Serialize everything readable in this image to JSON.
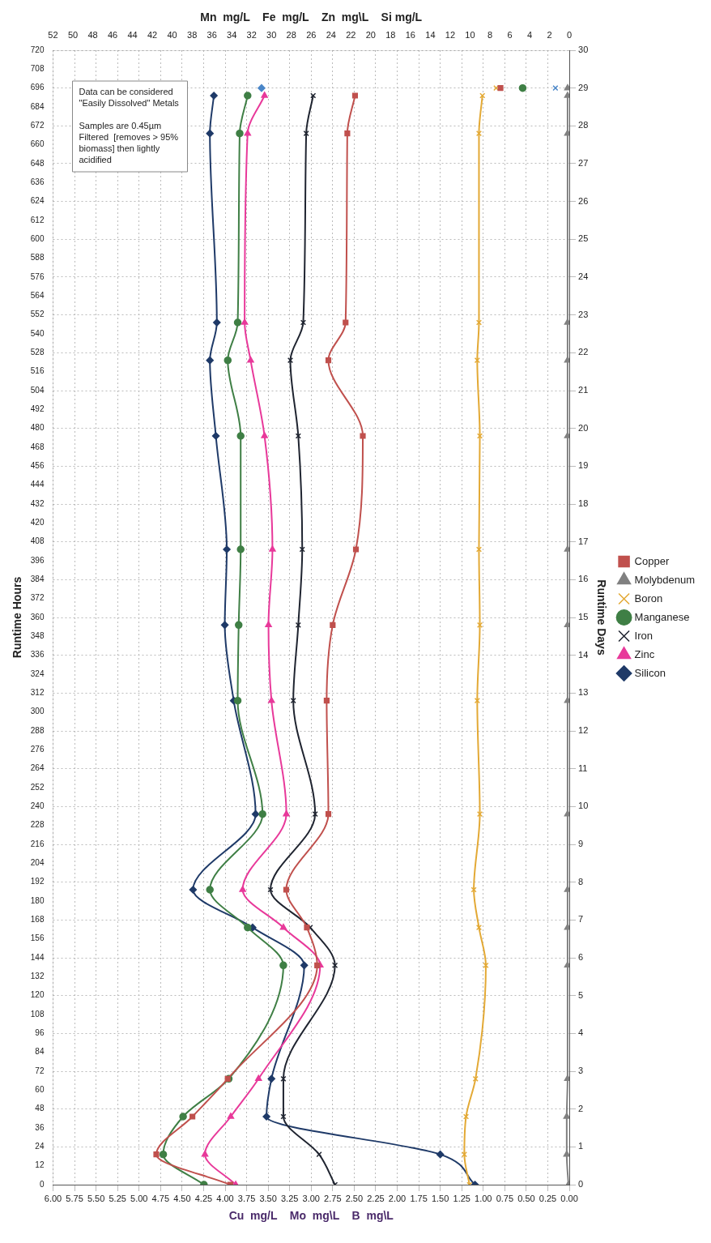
{
  "chart_data": {
    "type": "line",
    "xlabel": "Cu  mg/L    Mo  mg\\L    B  mg\\L",
    "x2label": "Mn  mg/L    Fe  mg/L    Zn  mg\\L    Si mg/L",
    "ylabel": "Runtime Days",
    "y2label": "Runtime Hours",
    "xlim": [
      6,
      0
    ],
    "xticks": [
      {
        "value": 6,
        "label": "6.00"
      },
      {
        "value": 5.75,
        "label": "5.75"
      },
      {
        "value": 5.5,
        "label": "5.50"
      },
      {
        "value": 5.25,
        "label": "5.25"
      },
      {
        "value": 5,
        "label": "5.00"
      },
      {
        "value": 4.75,
        "label": "4.75"
      },
      {
        "value": 4.5,
        "label": "4.50"
      },
      {
        "value": 4.25,
        "label": "4.25"
      },
      {
        "value": 4,
        "label": "4.00"
      },
      {
        "value": 3.75,
        "label": "3.75"
      },
      {
        "value": 3.5,
        "label": "3.50"
      },
      {
        "value": 3.25,
        "label": "3.25"
      },
      {
        "value": 3,
        "label": "3.00"
      },
      {
        "value": 2.75,
        "label": "2.75"
      },
      {
        "value": 2.5,
        "label": "2.50"
      },
      {
        "value": 2.25,
        "label": "2.25"
      },
      {
        "value": 2,
        "label": "2.00"
      },
      {
        "value": 1.75,
        "label": "1.75"
      },
      {
        "value": 1.5,
        "label": "1.50"
      },
      {
        "value": 1.25,
        "label": "1.25"
      },
      {
        "value": 1,
        "label": "1.00"
      },
      {
        "value": 0.75,
        "label": "0.75"
      },
      {
        "value": 0.5,
        "label": "0.50"
      },
      {
        "value": 0.25,
        "label": "0.25"
      },
      {
        "value": 0,
        "label": "0.00"
      }
    ],
    "x2lim": [
      52,
      0
    ],
    "x2ticks": [
      52,
      50,
      48,
      46,
      44,
      42,
      40,
      38,
      36,
      34,
      32,
      30,
      28,
      26,
      24,
      22,
      20,
      18,
      16,
      14,
      12,
      10,
      8,
      6,
      4,
      2,
      0
    ],
    "ylim": [
      0,
      30
    ],
    "yticks": [
      0,
      1,
      2,
      3,
      4,
      5,
      6,
      7,
      8,
      9,
      10,
      11,
      12,
      13,
      14,
      15,
      16,
      17,
      18,
      19,
      20,
      21,
      22,
      23,
      24,
      25,
      26,
      27,
      28,
      29,
      30
    ],
    "y2lim": [
      0,
      720
    ],
    "y2ticks": [
      0,
      12,
      24,
      36,
      48,
      60,
      72,
      84,
      96,
      108,
      120,
      132,
      144,
      156,
      168,
      180,
      192,
      204,
      216,
      228,
      240,
      252,
      264,
      276,
      288,
      300,
      312,
      324,
      336,
      348,
      360,
      372,
      384,
      396,
      408,
      420,
      432,
      444,
      456,
      468,
      480,
      492,
      504,
      516,
      528,
      540,
      552,
      564,
      576,
      588,
      600,
      612,
      624,
      636,
      648,
      660,
      672,
      684,
      696,
      708,
      720
    ],
    "grid": true,
    "legend": "right",
    "line_style": "solid",
    "annotations": [
      "Data can be considered \"Easily Dissolved\" Metals",
      "Samples are 0.45µm Filtered  [removes > 95% biomass] then lightly acidified"
    ],
    "series": [
      {
        "name": "Copper",
        "color": "#c0504d",
        "marker": "square",
        "x": [
          3.94,
          4.8,
          4.38,
          3.97,
          2.93,
          3.05,
          3.29,
          2.8,
          2.82,
          2.75,
          2.48,
          2.4,
          2.8,
          2.6,
          2.58,
          2.49
        ],
        "values": [
          0,
          0.8,
          1.8,
          2.8,
          5.8,
          6.8,
          7.8,
          9.8,
          12.8,
          14.8,
          16.8,
          19.8,
          21.8,
          22.8,
          27.8,
          28.8
        ]
      },
      {
        "name": "Molybdenum",
        "color": "#808080",
        "marker": "triangle",
        "x": [
          0.01,
          0.03,
          0.03,
          0.02,
          0.02,
          0.02,
          0.02,
          0.02,
          0.02,
          0.02,
          0.02,
          0.02,
          0.02,
          0.02,
          0.02,
          0.02
        ],
        "values": [
          0,
          0.8,
          1.8,
          2.8,
          5.8,
          6.8,
          7.8,
          9.8,
          12.8,
          14.8,
          16.8,
          19.8,
          21.8,
          22.8,
          27.8,
          28.8
        ]
      },
      {
        "name": "Boron",
        "color": "#e3a935",
        "marker": "cross",
        "x": [
          1.16,
          1.22,
          1.2,
          1.09,
          0.97,
          1.05,
          1.11,
          1.04,
          1.07,
          1.04,
          1.05,
          1.04,
          1.07,
          1.05,
          1.05,
          1.01
        ],
        "values": [
          0,
          0.8,
          1.8,
          2.8,
          5.8,
          6.8,
          7.8,
          9.8,
          12.8,
          14.8,
          16.8,
          19.8,
          21.8,
          22.8,
          27.8,
          28.8
        ]
      },
      {
        "name": "Manganese",
        "color": "#3f7f45",
        "marker": "circle",
        "axis": "x2",
        "x": [
          36.8,
          40.9,
          38.9,
          34.3,
          28.8,
          32.4,
          36.2,
          30.9,
          33.4,
          33.3,
          33.1,
          33.1,
          34.4,
          33.4,
          33.2,
          32.4
        ],
        "values": [
          0,
          0.8,
          1.8,
          2.8,
          5.8,
          6.8,
          7.8,
          9.8,
          12.8,
          14.8,
          16.8,
          19.8,
          21.8,
          22.8,
          27.8,
          28.8
        ]
      },
      {
        "name": "Iron",
        "color": "#1f2430",
        "marker": "cross",
        "axis": "x2",
        "x": [
          23.6,
          25.2,
          28.8,
          28.8,
          23.6,
          26.1,
          30.1,
          25.6,
          27.8,
          27.3,
          26.9,
          27.3,
          28.1,
          26.8,
          26.5,
          25.8
        ],
        "values": [
          0,
          0.8,
          1.8,
          2.8,
          5.8,
          6.8,
          7.8,
          9.8,
          12.8,
          14.8,
          16.8,
          19.8,
          21.8,
          22.8,
          27.8,
          28.8
        ]
      },
      {
        "name": "Zinc",
        "color": "#e8399a",
        "marker": "triangle",
        "axis": "x2",
        "x": [
          33.6,
          36.7,
          34.1,
          31.3,
          25.1,
          28.8,
          32.9,
          28.5,
          30.0,
          30.3,
          29.9,
          30.7,
          32.1,
          32.7,
          32.4,
          30.7
        ],
        "values": [
          0,
          0.8,
          1.8,
          2.8,
          5.8,
          6.8,
          7.8,
          9.8,
          12.8,
          14.8,
          16.8,
          19.8,
          21.8,
          22.8,
          27.8,
          28.8
        ]
      },
      {
        "name": "Silicon",
        "color": "#1f3a68",
        "marker": "diamond",
        "axis": "x2",
        "x": [
          9.5,
          13.0,
          30.5,
          30.0,
          26.7,
          31.9,
          37.9,
          31.6,
          33.8,
          34.7,
          34.5,
          35.6,
          36.2,
          35.5,
          36.2,
          35.8
        ],
        "values": [
          0,
          0.8,
          1.8,
          2.8,
          5.8,
          6.8,
          7.8,
          9.8,
          12.8,
          14.8,
          16.8,
          19.8,
          21.8,
          22.8,
          27.8,
          28.8
        ]
      },
      {
        "type": "scatter",
        "color": "#c0504d",
        "marker": "square",
        "x": [
          0.8
        ],
        "values": [
          29
        ]
      },
      {
        "type": "scatter",
        "color": "#808080",
        "marker": "triangle",
        "x": [
          0.02
        ],
        "values": [
          29
        ]
      },
      {
        "type": "scatter",
        "color": "#e3a935",
        "marker": "cross",
        "x": [
          0.85
        ],
        "values": [
          29
        ]
      },
      {
        "type": "scatter",
        "color": "#3f7f45",
        "marker": "circle",
        "axis": "x2",
        "x": [
          4.7
        ],
        "values": [
          29
        ]
      },
      {
        "type": "scatter",
        "color": "#4a86c8",
        "marker": "cross",
        "axis": "x2",
        "x": [
          1.4
        ],
        "values": [
          29
        ]
      },
      {
        "type": "scatter",
        "color": "#4a86c8",
        "marker": "diamond",
        "axis": "x2",
        "x": [
          31.0
        ],
        "values": [
          29
        ]
      }
    ]
  }
}
